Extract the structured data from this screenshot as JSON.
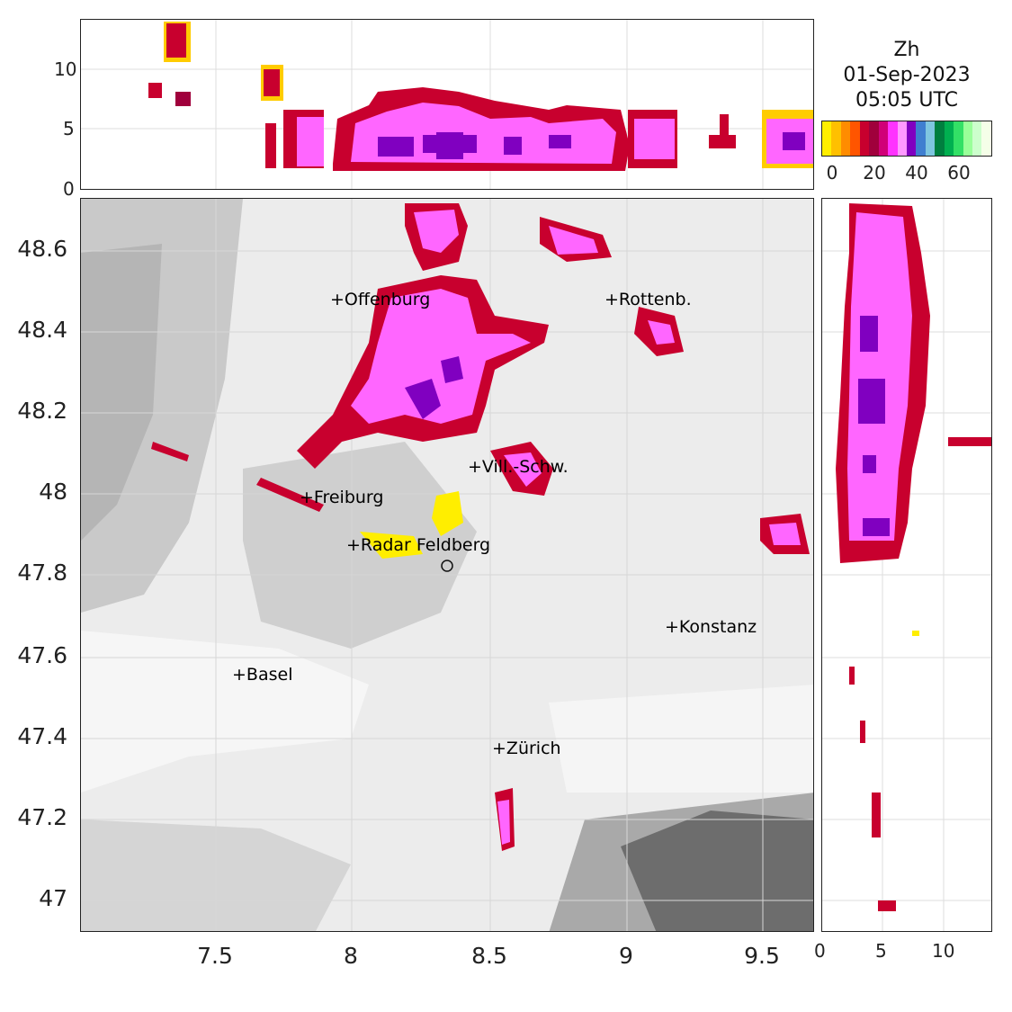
{
  "title": {
    "variable": "Zh",
    "date": "01-Sep-2023",
    "time": "05:05 UTC"
  },
  "colorbar": {
    "colors": [
      "#ffee00",
      "#ffc000",
      "#ff8c00",
      "#ff5500",
      "#c8002e",
      "#a0003c",
      "#d10078",
      "#ff33ff",
      "#ff99ff",
      "#8000c0",
      "#3f7fd0",
      "#7fc6e0",
      "#007f3f",
      "#00b050",
      "#33e066",
      "#99ff99",
      "#ccffcc",
      "#f5ffe8"
    ],
    "ticks": [
      "0",
      "20",
      "40",
      "60"
    ]
  },
  "top_panel": {
    "y_ticks": [
      "10",
      "5",
      "0"
    ]
  },
  "map_panel": {
    "lat_ticks": [
      "48.6",
      "48.4",
      "48.2",
      "48",
      "47.8",
      "47.6",
      "47.4",
      "47.2",
      "47"
    ],
    "lon_ticks": [
      "7.5",
      "8",
      "8.5",
      "9",
      "9.5"
    ]
  },
  "right_panel": {
    "x_ticks": [
      "0",
      "5",
      "10"
    ]
  },
  "cities": [
    {
      "name": "Offenburg",
      "lon": 7.94,
      "lat": 48.47
    },
    {
      "name": "Rottenb.",
      "lon": 8.94,
      "lat": 48.47
    },
    {
      "name": "Vill.-Schw.",
      "lon": 8.45,
      "lat": 48.06
    },
    {
      "name": "Freiburg",
      "lon": 7.83,
      "lat": 47.99
    },
    {
      "name": "Radar Feldberg",
      "lon": 8.0,
      "lat": 47.87
    },
    {
      "name": "Konstanz",
      "lon": 9.17,
      "lat": 47.67
    },
    {
      "name": "Basel",
      "lon": 7.59,
      "lat": 47.55
    },
    {
      "name": "Zürich",
      "lon": 8.54,
      "lat": 47.37
    }
  ],
  "radar_site": {
    "lon": 8.35,
    "lat": 47.82
  }
}
